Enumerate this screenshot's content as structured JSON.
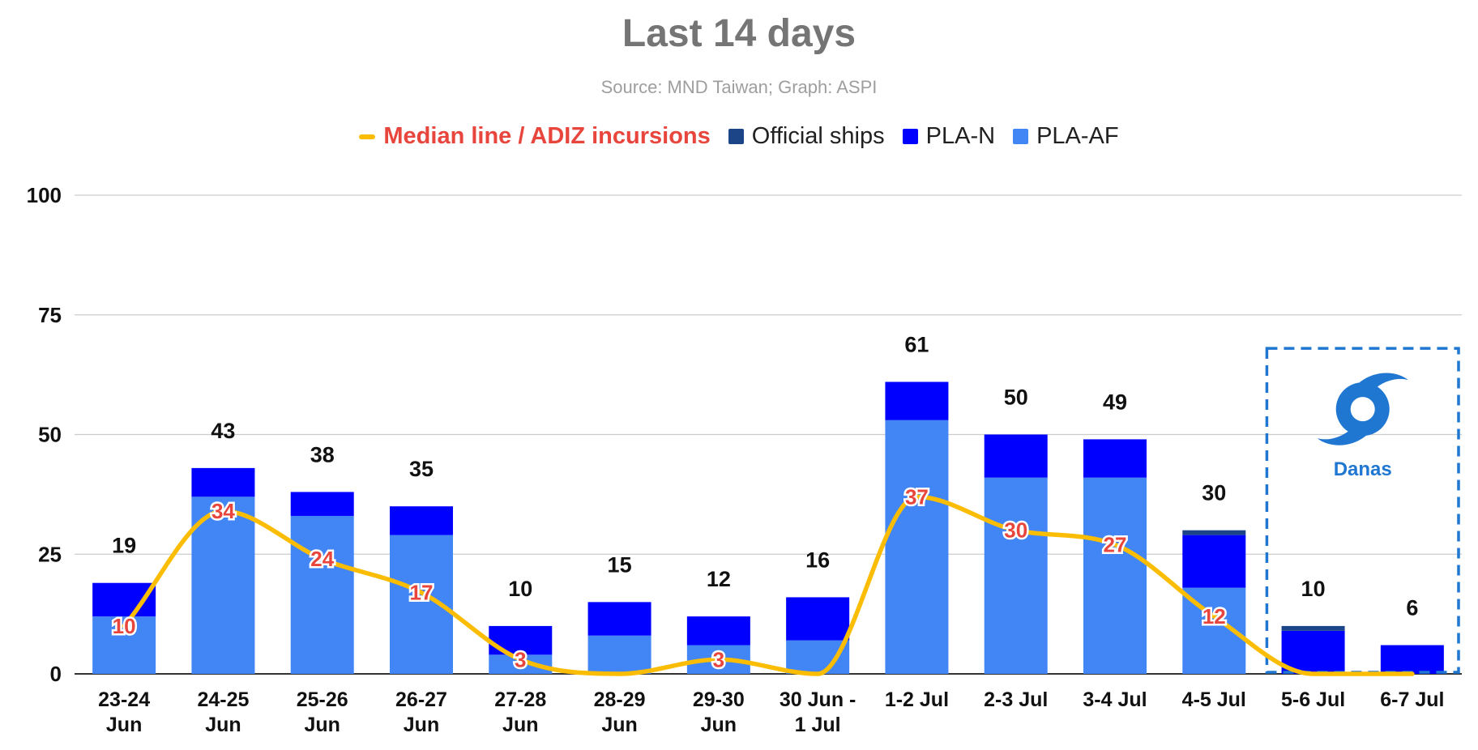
{
  "chart_data": {
    "type": "bar",
    "title": "Last 14 days",
    "subtitle": "Source: MND Taiwan; Graph: ASPI",
    "ylim": [
      0,
      100
    ],
    "yticks": [
      0,
      25,
      50,
      75,
      100
    ],
    "grid": true,
    "legend_position": "top",
    "categories": [
      [
        "23-24",
        "Jun"
      ],
      [
        "24-25",
        "Jun"
      ],
      [
        "25-26",
        "Jun"
      ],
      [
        "26-27",
        "Jun"
      ],
      [
        "27-28",
        "Jun"
      ],
      [
        "28-29",
        "Jun"
      ],
      [
        "29-30",
        "Jun"
      ],
      [
        "30 Jun -",
        "1 Jul"
      ],
      [
        "1-2 Jul"
      ],
      [
        "2-3 Jul"
      ],
      [
        "3-4 Jul"
      ],
      [
        "4-5 Jul"
      ],
      [
        "5-6 Jul"
      ],
      [
        "6-7 Jul"
      ]
    ],
    "series": [
      {
        "name": "PLA-AF",
        "color": "#4285f4",
        "kind": "bar",
        "values": [
          12,
          37,
          33,
          29,
          4,
          8,
          6,
          7,
          53,
          41,
          41,
          18,
          0,
          0
        ]
      },
      {
        "name": "PLA-N",
        "color": "#0000ff",
        "kind": "bar",
        "values": [
          7,
          6,
          5,
          6,
          6,
          7,
          6,
          9,
          8,
          9,
          8,
          11,
          9,
          6
        ]
      },
      {
        "name": "Official ships",
        "color": "#1c4587",
        "kind": "bar",
        "values": [
          0,
          0,
          0,
          0,
          0,
          0,
          0,
          0,
          0,
          0,
          0,
          1,
          1,
          0
        ]
      },
      {
        "name": "Median line / ADIZ incursions",
        "color": "#fbbc04",
        "kind": "line",
        "values": [
          10,
          34,
          24,
          17,
          3,
          0,
          3,
          0,
          37,
          30,
          27,
          12,
          0,
          0
        ],
        "labels": [
          "10",
          "34",
          "24",
          "17",
          "3",
          "",
          "3",
          "",
          "37",
          "30",
          "27",
          "12",
          "",
          ""
        ]
      }
    ],
    "totals": [
      "19",
      "43",
      "38",
      "35",
      "10",
      "15",
      "12",
      "16",
      "61",
      "50",
      "49",
      "30",
      "10",
      "6"
    ],
    "annotation": {
      "text": "Danas",
      "from_category": 12,
      "to_category": 13,
      "y_top": 68,
      "icon": "typhoon-icon",
      "color": "#1f77d1"
    }
  },
  "legend": [
    {
      "label": "Median line / ADIZ incursions",
      "color": "#fbbc04",
      "shape": "line",
      "text_color": "#e8453c"
    },
    {
      "label": "Official ships",
      "color": "#1c4587",
      "shape": "box"
    },
    {
      "label": "PLA-N",
      "color": "#0000ff",
      "shape": "box"
    },
    {
      "label": "PLA-AF",
      "color": "#4285f4",
      "shape": "box"
    }
  ]
}
